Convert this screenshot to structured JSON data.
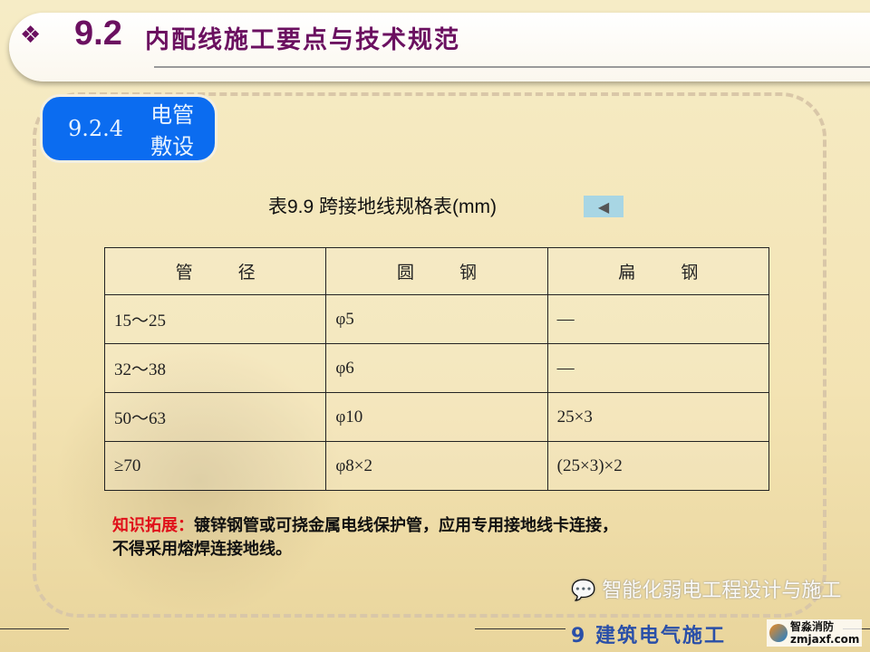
{
  "header": {
    "icon": "diamond-bullet-icon",
    "number": "9.2",
    "title": "内配线施工要点与技术规范"
  },
  "section": {
    "number": "9.2.4",
    "title": "电管敷设"
  },
  "table": {
    "caption": "表9.9  跨接地线规格表(mm)",
    "back_icon": "back-triangle-icon",
    "headers": [
      "管 径",
      "圆 钢",
      "扁 钢"
    ],
    "rows": [
      [
        "15～25",
        "φ5",
        "—"
      ],
      [
        "32～38",
        "φ6",
        "—"
      ],
      [
        "50～63",
        "φ10",
        "25×3"
      ],
      [
        "≥70",
        "φ8×2",
        "(25×3)×2"
      ]
    ]
  },
  "note": {
    "label": "知识拓展：",
    "text1": "镀锌钢管或可挠金属电线保护管，应用专用接地线卡连接，",
    "text2": "不得采用熔焊连接地线。"
  },
  "footer": {
    "chapter": "9 建筑电气施工",
    "watermark": "智能化弱电工程设计与施工",
    "logo_name": "智淼消防",
    "logo_url": "zmjaxf.com"
  },
  "colors": {
    "title": "#6b1060",
    "section_bg": "#0b6cf0",
    "highlight": "#e0101a"
  }
}
